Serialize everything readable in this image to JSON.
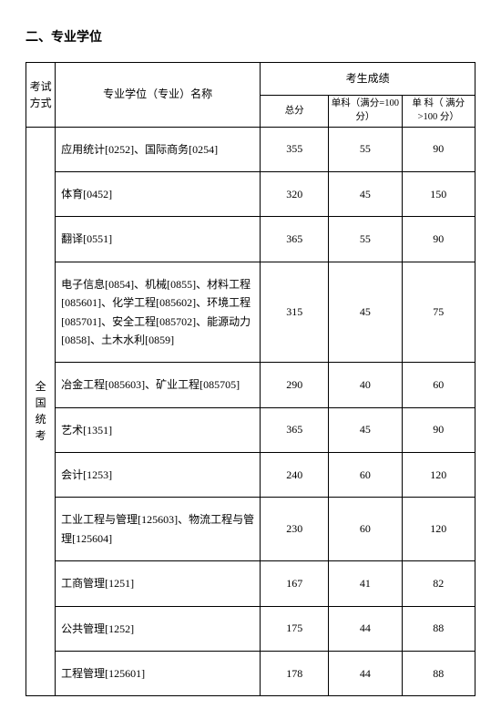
{
  "title": "二、专业学位",
  "colors": {
    "text": "#000000",
    "background": "#ffffff",
    "border": "#000000"
  },
  "headers": {
    "method": "考试\n方式",
    "major": "专业学位（专业）名称",
    "score_group": "考生成绩",
    "total": "总分",
    "sub1": "单科（满分=100 分）",
    "sub2": "单 科（ 满分>100 分）"
  },
  "method_label": "全国统考",
  "rows": [
    {
      "major": "应用统计[0252]、国际商务[0254]",
      "total": "355",
      "sub1": "55",
      "sub2": "90"
    },
    {
      "major": "体育[0452]",
      "total": "320",
      "sub1": "45",
      "sub2": "150"
    },
    {
      "major": "翻译[0551]",
      "total": "365",
      "sub1": "55",
      "sub2": "90"
    },
    {
      "major": "电子信息[0854]、机械[0855]、材料工程[085601]、化学工程[085602]、环境工程[085701]、安全工程[085702]、能源动力[0858]、土木水利[0859]",
      "total": "315",
      "sub1": "45",
      "sub2": "75"
    },
    {
      "major": "冶金工程[085603]、矿业工程[085705]",
      "total": "290",
      "sub1": "40",
      "sub2": "60"
    },
    {
      "major": "艺术[1351]",
      "total": "365",
      "sub1": "45",
      "sub2": "90"
    },
    {
      "major": "会计[1253]",
      "total": "240",
      "sub1": "60",
      "sub2": "120"
    },
    {
      "major": "工业工程与管理[125603]、物流工程与管理[125604]",
      "total": "230",
      "sub1": "60",
      "sub2": "120"
    },
    {
      "major": "工商管理[1251]",
      "total": "167",
      "sub1": "41",
      "sub2": "82"
    },
    {
      "major": "公共管理[1252]",
      "total": "175",
      "sub1": "44",
      "sub2": "88"
    },
    {
      "major": "工程管理[125601]",
      "total": "178",
      "sub1": "44",
      "sub2": "88"
    }
  ]
}
